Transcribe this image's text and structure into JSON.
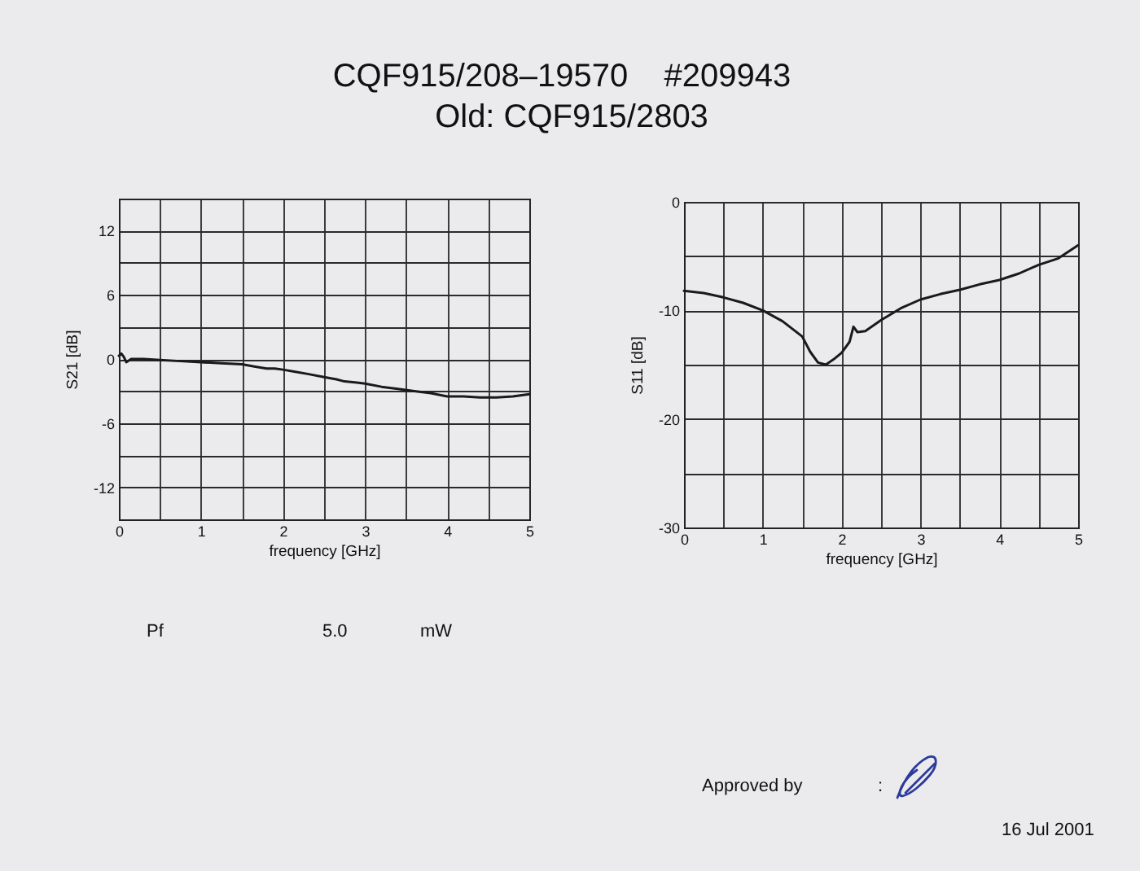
{
  "chart_data": [
    {
      "type": "other",
      "title": "CQF915/208–19570    #209943",
      "subtitle": "Old: CQF915/2803"
    },
    {
      "type": "line",
      "xlabel": "frequency [GHz]",
      "ylabel": "S21 [dB]",
      "x": [
        0,
        0.03,
        0.06,
        0.09,
        0.15,
        0.3,
        0.5,
        0.75,
        1.0,
        1.25,
        1.5,
        1.65,
        1.8,
        1.9,
        2.0,
        2.15,
        2.3,
        2.5,
        2.65,
        2.75,
        2.9,
        3.0,
        3.2,
        3.4,
        3.6,
        3.8,
        4.0,
        4.2,
        4.4,
        4.6,
        4.8,
        5.0
      ],
      "series": [
        {
          "color": "#1a1a1a",
          "values": [
            0.3,
            0.5,
            0.2,
            -0.3,
            0.0,
            0.0,
            -0.1,
            -0.2,
            -0.3,
            -0.4,
            -0.5,
            -0.7,
            -0.9,
            -0.9,
            -1.0,
            -1.2,
            -1.4,
            -1.7,
            -1.9,
            -2.1,
            -2.2,
            -2.3,
            -2.6,
            -2.8,
            -3.0,
            -3.2,
            -3.5,
            -3.5,
            -3.6,
            -3.6,
            -3.5,
            -3.3
          ]
        }
      ],
      "xlim": [
        0,
        5
      ],
      "ylim": [
        -15,
        15
      ],
      "xticks": [
        0,
        {
          "value": 0.5,
          "label": null
        },
        1,
        {
          "value": 1.5,
          "label": null
        },
        2,
        {
          "value": 2.5,
          "label": null
        },
        3,
        {
          "value": 3.5,
          "label": null
        },
        4,
        {
          "value": 4.5,
          "label": null
        },
        5
      ],
      "yticks": [
        -12,
        {
          "value": -9,
          "label": null
        },
        -6,
        {
          "value": -3,
          "label": null
        },
        0,
        {
          "value": 3,
          "label": null
        },
        6,
        {
          "value": 9,
          "label": null
        },
        12
      ],
      "grid": true
    },
    {
      "type": "line",
      "xlabel": "frequency [GHz]",
      "ylabel": "S11 [dB]",
      "x": [
        0,
        0.25,
        0.5,
        0.75,
        1.0,
        1.25,
        1.5,
        1.6,
        1.7,
        1.8,
        1.9,
        2.0,
        2.1,
        2.15,
        2.2,
        2.3,
        2.5,
        2.75,
        3.0,
        3.25,
        3.5,
        3.75,
        4.0,
        4.25,
        4.5,
        4.75,
        5.0
      ],
      "series": [
        {
          "color": "#1a1a1a",
          "values": [
            -8.2,
            -8.4,
            -8.8,
            -9.3,
            -10.0,
            -11.0,
            -12.4,
            -13.8,
            -14.8,
            -15.0,
            -14.5,
            -13.9,
            -12.9,
            -11.5,
            -12.0,
            -11.9,
            -10.9,
            -9.8,
            -9.0,
            -8.5,
            -8.1,
            -7.6,
            -7.2,
            -6.6,
            -5.8,
            -5.2,
            -4.0
          ]
        }
      ],
      "xlim": [
        0,
        5
      ],
      "ylim": [
        -30,
        0
      ],
      "xticks": [
        0,
        {
          "value": 0.5,
          "label": null
        },
        1,
        {
          "value": 1.5,
          "label": null
        },
        2,
        {
          "value": 2.5,
          "label": null
        },
        3,
        {
          "value": 3.5,
          "label": null
        },
        4,
        {
          "value": 4.5,
          "label": null
        },
        5
      ],
      "yticks": [
        -30,
        {
          "value": -25,
          "label": null
        },
        -20,
        {
          "value": -15,
          "label": null
        },
        -10,
        {
          "value": -5,
          "label": null
        },
        0
      ],
      "grid": true
    },
    {
      "type": "other",
      "annotations": [
        "Pf",
        "5.0",
        "mW",
        "Approved by",
        ":",
        "16 Jul 2001"
      ]
    }
  ]
}
